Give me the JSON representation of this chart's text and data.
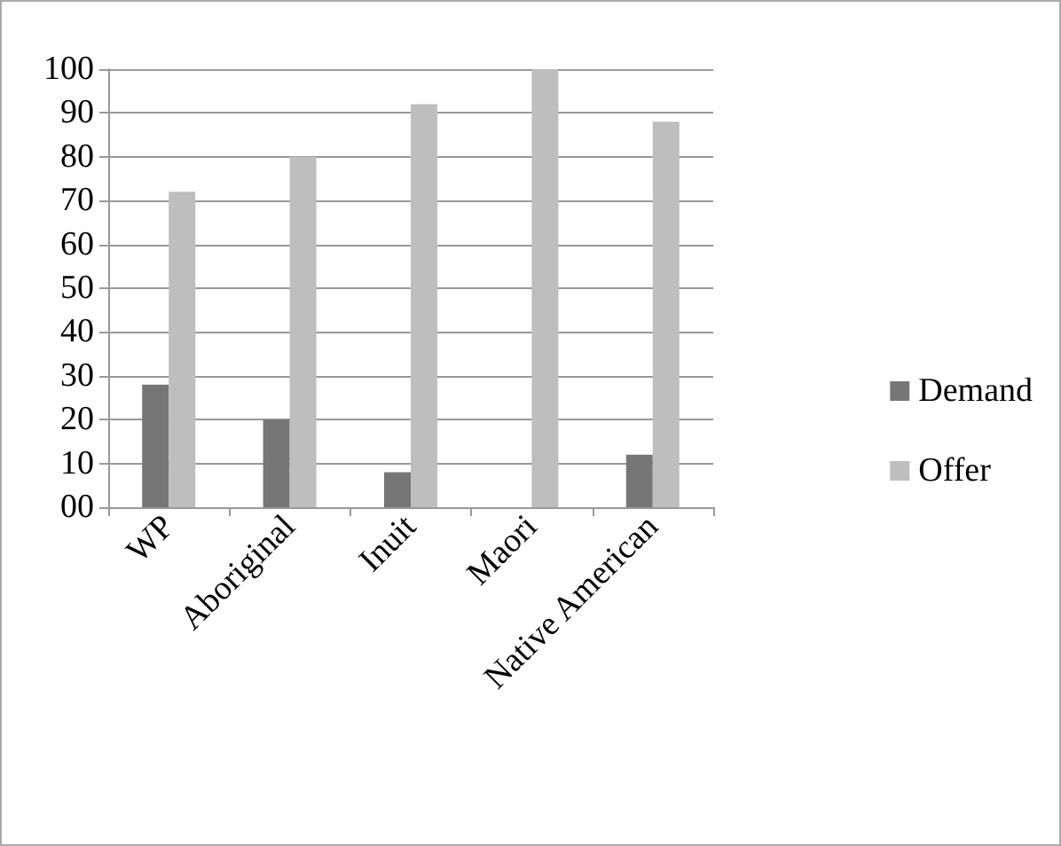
{
  "chart_data": {
    "type": "bar",
    "categories": [
      "WP",
      "Aboriginal",
      "Inuit",
      "Maori",
      "Native American"
    ],
    "series": [
      {
        "name": "Demand",
        "color": "#767676",
        "values": [
          28,
          20,
          8,
          0,
          12
        ]
      },
      {
        "name": "Offer",
        "color": "#bebebe",
        "values": [
          72,
          80,
          92,
          100,
          88
        ]
      }
    ],
    "ylim": [
      0,
      100
    ],
    "yticks": [
      {
        "value": 0,
        "label": "00"
      },
      10,
      20,
      30,
      40,
      50,
      60,
      70,
      80,
      90,
      100
    ],
    "grid": "y",
    "legend": "right"
  }
}
